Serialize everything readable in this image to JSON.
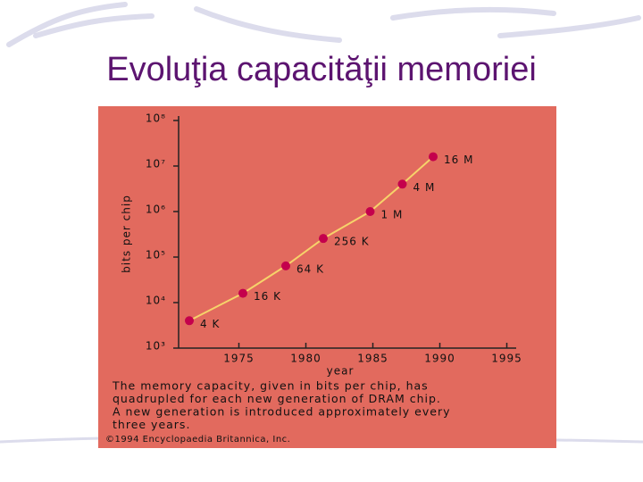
{
  "chart_data": {
    "type": "line",
    "title": "Evoluţia capacităţii memoriei",
    "ylabel": "bits per chip",
    "xlabel": "year",
    "x": [
      1971.3,
      1975.3,
      1978.5,
      1981.3,
      1984.8,
      1987.2,
      1989.5
    ],
    "values": [
      4000,
      16000,
      64000,
      256000,
      1000000,
      4000000,
      16000000
    ],
    "value_labels": [
      "4 K",
      "16 K",
      "64 K",
      "256 K",
      "1 M",
      "4 M",
      "16 M"
    ],
    "line_color": "#f6d36a",
    "marker_color": "#c4004c",
    "panel_color": "#e26a5e",
    "yscale": "log",
    "xlim": [
      1970.5,
      1995.7
    ],
    "xticks": [
      1975,
      1980,
      1985,
      1990,
      1995
    ],
    "ylim": [
      1000,
      100000000
    ],
    "yticks": [
      {
        "value": 1000,
        "label": "10³"
      },
      {
        "value": 10000,
        "label": "10⁴"
      },
      {
        "value": 100000,
        "label": "10⁵"
      },
      {
        "value": 1000000,
        "label": "10⁶"
      },
      {
        "value": 10000000,
        "label": "10⁷"
      },
      {
        "value": 100000000,
        "label": "10⁸"
      }
    ],
    "caption": [
      "The memory capacity, given in bits per chip, has",
      "quadrupled for each new generation of DRAM chip.",
      "A new generation is introduced approximately every",
      "three years."
    ],
    "credit": "©1994 Encyclopaedia Britannica, Inc."
  }
}
